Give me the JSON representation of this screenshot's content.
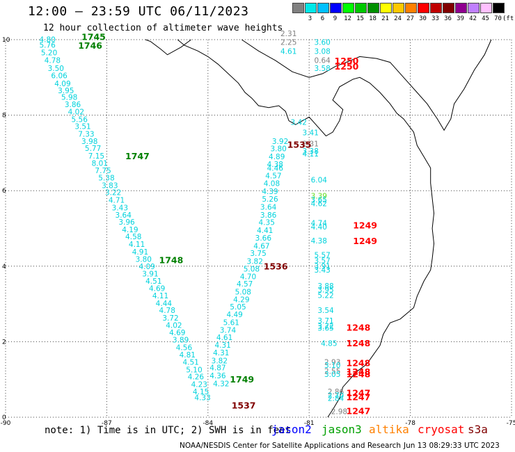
{
  "header": {
    "title": "12:00 – 23:59 UTC 06/11/2023",
    "subtitle": "12 hour collection of altimeter wave heights"
  },
  "colorbar": {
    "colors": [
      "#808080",
      "#00e8e8",
      "#00c0ff",
      "#0000ff",
      "#00ff00",
      "#00c800",
      "#009000",
      "#ffff00",
      "#ffc800",
      "#ff8000",
      "#ff0000",
      "#c00000",
      "#800000",
      "#900090",
      "#c080ff",
      "#ffc0ff",
      "#000000"
    ],
    "labels": [
      "3",
      "6",
      "9",
      "12",
      "15",
      "18",
      "21",
      "24",
      "27",
      "30",
      "33",
      "36",
      "39",
      "42",
      "45",
      "70"
    ],
    "unit": "(ft)"
  },
  "map": {
    "x_axis": {
      "ticks": [
        -90,
        -87,
        -84,
        -81,
        -78,
        -75
      ]
    },
    "y_axis": {
      "ticks": [
        0,
        2,
        4,
        6,
        8,
        10
      ]
    },
    "grid": "dotted",
    "swh_labels": [
      {
        "lon": -89.0,
        "lat": 9.94,
        "text": "4.80",
        "color": "cyan"
      },
      {
        "lon": -89.0,
        "lat": 9.79,
        "text": "5.76",
        "color": "cyan"
      },
      {
        "lon": -88.95,
        "lat": 9.59,
        "text": "5.20",
        "color": "cyan"
      },
      {
        "lon": -88.85,
        "lat": 9.38,
        "text": "4.78",
        "color": "cyan"
      },
      {
        "lon": -88.75,
        "lat": 9.17,
        "text": "3.50",
        "color": "cyan"
      },
      {
        "lon": -88.65,
        "lat": 8.98,
        "text": "6.06",
        "color": "cyan"
      },
      {
        "lon": -88.55,
        "lat": 8.77,
        "text": "4.09",
        "color": "cyan"
      },
      {
        "lon": -88.45,
        "lat": 8.58,
        "text": "3.95",
        "color": "cyan"
      },
      {
        "lon": -88.35,
        "lat": 8.41,
        "text": "5.98",
        "color": "cyan"
      },
      {
        "lon": -88.25,
        "lat": 8.21,
        "text": "3.86",
        "color": "cyan"
      },
      {
        "lon": -88.15,
        "lat": 8.02,
        "text": "4.02",
        "color": "cyan"
      },
      {
        "lon": -88.05,
        "lat": 7.82,
        "text": "5.56",
        "color": "cyan"
      },
      {
        "lon": -87.95,
        "lat": 7.63,
        "text": "3.51",
        "color": "cyan"
      },
      {
        "lon": -87.85,
        "lat": 7.43,
        "text": "7.33",
        "color": "cyan"
      },
      {
        "lon": -87.75,
        "lat": 7.24,
        "text": "3.98",
        "color": "cyan"
      },
      {
        "lon": -87.65,
        "lat": 7.05,
        "text": "5.77",
        "color": "cyan"
      },
      {
        "lon": -87.55,
        "lat": 6.85,
        "text": "7.15",
        "color": "cyan"
      },
      {
        "lon": -87.45,
        "lat": 6.66,
        "text": "8.01",
        "color": "cyan"
      },
      {
        "lon": -87.35,
        "lat": 6.46,
        "text": "7.75",
        "color": "cyan"
      },
      {
        "lon": -87.25,
        "lat": 6.27,
        "text": "5.38",
        "color": "cyan"
      },
      {
        "lon": -87.15,
        "lat": 6.07,
        "text": "3.83",
        "color": "cyan"
      },
      {
        "lon": -87.05,
        "lat": 5.88,
        "text": "3.22",
        "color": "cyan"
      },
      {
        "lon": -86.95,
        "lat": 5.68,
        "text": "4.71",
        "color": "cyan"
      },
      {
        "lon": -86.85,
        "lat": 5.48,
        "text": "3.43",
        "color": "cyan"
      },
      {
        "lon": -86.75,
        "lat": 5.29,
        "text": "3.64",
        "color": "cyan"
      },
      {
        "lon": -86.65,
        "lat": 5.1,
        "text": "3.96",
        "color": "cyan"
      },
      {
        "lon": -86.55,
        "lat": 4.9,
        "text": "4.19",
        "color": "cyan"
      },
      {
        "lon": -86.45,
        "lat": 4.71,
        "text": "4.58",
        "color": "cyan"
      },
      {
        "lon": -86.35,
        "lat": 4.51,
        "text": "4.11",
        "color": "cyan"
      },
      {
        "lon": -86.25,
        "lat": 4.31,
        "text": "4.91",
        "color": "cyan"
      },
      {
        "lon": -86.15,
        "lat": 4.12,
        "text": "3.80",
        "color": "cyan"
      },
      {
        "lon": -86.05,
        "lat": 3.92,
        "text": "4.09",
        "color": "cyan"
      },
      {
        "lon": -85.95,
        "lat": 3.73,
        "text": "3.91",
        "color": "cyan"
      },
      {
        "lon": -85.85,
        "lat": 3.54,
        "text": "4.51",
        "color": "cyan"
      },
      {
        "lon": -85.75,
        "lat": 3.34,
        "text": "4.69",
        "color": "cyan"
      },
      {
        "lon": -85.65,
        "lat": 3.15,
        "text": "4.11",
        "color": "cyan"
      },
      {
        "lon": -85.55,
        "lat": 2.95,
        "text": "4.44",
        "color": "cyan"
      },
      {
        "lon": -85.45,
        "lat": 2.76,
        "text": "4.78",
        "color": "cyan"
      },
      {
        "lon": -85.35,
        "lat": 2.56,
        "text": "3.72",
        "color": "cyan"
      },
      {
        "lon": -85.25,
        "lat": 2.37,
        "text": "4.02",
        "color": "cyan"
      },
      {
        "lon": -85.15,
        "lat": 2.17,
        "text": "4.69",
        "color": "cyan"
      },
      {
        "lon": -85.05,
        "lat": 1.98,
        "text": "3.89",
        "color": "cyan"
      },
      {
        "lon": -84.95,
        "lat": 1.78,
        "text": "4.56",
        "color": "cyan"
      },
      {
        "lon": -84.85,
        "lat": 1.58,
        "text": "4.81",
        "color": "cyan"
      },
      {
        "lon": -84.75,
        "lat": 1.39,
        "text": "4.51",
        "color": "cyan"
      },
      {
        "lon": -84.65,
        "lat": 1.19,
        "text": "5.10",
        "color": "cyan"
      },
      {
        "lon": -84.6,
        "lat": 1.0,
        "text": "4.26",
        "color": "cyan"
      },
      {
        "lon": -84.5,
        "lat": 0.8,
        "text": "4.23",
        "color": "cyan"
      },
      {
        "lon": -84.45,
        "lat": 0.61,
        "text": "4.15",
        "color": "cyan"
      },
      {
        "lon": -84.4,
        "lat": 0.45,
        "text": "4.33",
        "color": "cyan"
      },
      {
        "lon": -83.95,
        "lat": 1.03,
        "text": "4.36",
        "color": "cyan"
      },
      {
        "lon": -83.85,
        "lat": 0.82,
        "text": "4.32",
        "color": "cyan"
      },
      {
        "lon": -83.95,
        "lat": 1.24,
        "text": "4.87",
        "color": "cyan"
      },
      {
        "lon": -83.9,
        "lat": 1.43,
        "text": "3.82",
        "color": "cyan"
      },
      {
        "lon": -83.85,
        "lat": 1.64,
        "text": "4.31",
        "color": "cyan"
      },
      {
        "lon": -83.8,
        "lat": 1.84,
        "text": "4.31",
        "color": "cyan"
      },
      {
        "lon": -83.75,
        "lat": 2.04,
        "text": "4.61",
        "color": "cyan"
      },
      {
        "lon": -83.65,
        "lat": 2.24,
        "text": "3.74",
        "color": "cyan"
      },
      {
        "lon": -83.55,
        "lat": 2.44,
        "text": "5.61",
        "color": "cyan"
      },
      {
        "lon": -83.45,
        "lat": 2.65,
        "text": "4.49",
        "color": "cyan"
      },
      {
        "lon": -83.35,
        "lat": 2.85,
        "text": "5.05",
        "color": "cyan"
      },
      {
        "lon": -83.25,
        "lat": 3.05,
        "text": "4.29",
        "color": "cyan"
      },
      {
        "lon": -83.2,
        "lat": 3.25,
        "text": "5.08",
        "color": "cyan"
      },
      {
        "lon": -83.15,
        "lat": 3.46,
        "text": "4.57",
        "color": "cyan"
      },
      {
        "lon": -83.05,
        "lat": 3.66,
        "text": "4.70",
        "color": "cyan"
      },
      {
        "lon": -82.95,
        "lat": 3.86,
        "text": "5.08",
        "color": "cyan"
      },
      {
        "lon": -82.85,
        "lat": 4.06,
        "text": "3.82",
        "color": "cyan"
      },
      {
        "lon": -82.75,
        "lat": 4.27,
        "text": "3.75",
        "color": "cyan"
      },
      {
        "lon": -82.65,
        "lat": 4.47,
        "text": "4.67",
        "color": "cyan"
      },
      {
        "lon": -82.6,
        "lat": 4.68,
        "text": "3.66",
        "color": "cyan"
      },
      {
        "lon": -82.55,
        "lat": 4.88,
        "text": "4.41",
        "color": "cyan"
      },
      {
        "lon": -82.5,
        "lat": 5.09,
        "text": "4.35",
        "color": "cyan"
      },
      {
        "lon": -82.45,
        "lat": 5.29,
        "text": "3.86",
        "color": "cyan"
      },
      {
        "lon": -82.45,
        "lat": 5.5,
        "text": "3.64",
        "color": "cyan"
      },
      {
        "lon": -82.4,
        "lat": 5.71,
        "text": "5.26",
        "color": "cyan"
      },
      {
        "lon": -82.4,
        "lat": 5.91,
        "text": "4.39",
        "color": "cyan"
      },
      {
        "lon": -82.35,
        "lat": 6.12,
        "text": "4.08",
        "color": "cyan"
      },
      {
        "lon": -82.3,
        "lat": 6.33,
        "text": "4.57",
        "color": "cyan"
      },
      {
        "lon": -82.25,
        "lat": 6.53,
        "text": "4.46",
        "color": "cyan"
      },
      {
        "lon": -82.25,
        "lat": 6.63,
        "text": "4.38",
        "color": "cyan"
      },
      {
        "lon": -82.2,
        "lat": 6.83,
        "text": "4.89",
        "color": "cyan"
      },
      {
        "lon": -82.15,
        "lat": 7.04,
        "text": "3.80",
        "color": "cyan"
      },
      {
        "lon": -82.1,
        "lat": 7.24,
        "text": "3.92",
        "color": "cyan"
      },
      {
        "lon": -81.55,
        "lat": 7.74,
        "text": "3.42",
        "color": "cyan"
      },
      {
        "lon": -81.2,
        "lat": 7.47,
        "text": "3.41",
        "color": "cyan"
      },
      {
        "lon": -81.2,
        "lat": 7.17,
        "text": "2.31",
        "color": "gray"
      },
      {
        "lon": -81.2,
        "lat": 6.98,
        "text": "3.38",
        "color": "cyan"
      },
      {
        "lon": -81.2,
        "lat": 6.91,
        "text": "4.11",
        "color": "cyan"
      },
      {
        "lon": -80.95,
        "lat": 6.22,
        "text": "6.04",
        "color": "cyan"
      },
      {
        "lon": -80.95,
        "lat": 5.79,
        "text": "3.39",
        "color": "lime"
      },
      {
        "lon": -80.95,
        "lat": 5.69,
        "text": "3.65",
        "color": "cyan"
      },
      {
        "lon": -80.95,
        "lat": 5.59,
        "text": "4.62",
        "color": "cyan"
      },
      {
        "lon": -80.95,
        "lat": 5.07,
        "text": "4.74",
        "color": "cyan"
      },
      {
        "lon": -80.95,
        "lat": 4.97,
        "text": "4.40",
        "color": "cyan"
      },
      {
        "lon": -80.95,
        "lat": 4.6,
        "text": "4.38",
        "color": "cyan"
      },
      {
        "lon": -80.85,
        "lat": 4.23,
        "text": "5.57",
        "color": "cyan"
      },
      {
        "lon": -80.85,
        "lat": 4.08,
        "text": "3.57",
        "color": "cyan"
      },
      {
        "lon": -80.85,
        "lat": 3.93,
        "text": "3.91",
        "color": "cyan"
      },
      {
        "lon": -80.85,
        "lat": 3.83,
        "text": "3.43",
        "color": "cyan"
      },
      {
        "lon": -80.75,
        "lat": 3.41,
        "text": "3.88",
        "color": "cyan"
      },
      {
        "lon": -80.75,
        "lat": 3.31,
        "text": "3.95",
        "color": "cyan"
      },
      {
        "lon": -80.75,
        "lat": 3.16,
        "text": "5.22",
        "color": "cyan"
      },
      {
        "lon": -80.75,
        "lat": 2.76,
        "text": "3.54",
        "color": "cyan"
      },
      {
        "lon": -80.75,
        "lat": 2.49,
        "text": "3.71",
        "color": "cyan"
      },
      {
        "lon": -80.75,
        "lat": 2.34,
        "text": "3.72",
        "color": "cyan"
      },
      {
        "lon": -80.75,
        "lat": 2.29,
        "text": "3.65",
        "color": "cyan"
      },
      {
        "lon": -80.65,
        "lat": 1.89,
        "text": "4.85",
        "color": "cyan"
      },
      {
        "lon": -80.55,
        "lat": 1.39,
        "text": "2.93",
        "color": "gray"
      },
      {
        "lon": -80.55,
        "lat": 1.31,
        "text": "3.10",
        "color": "cyan"
      },
      {
        "lon": -80.55,
        "lat": 1.15,
        "text": "2.55",
        "color": "gray"
      },
      {
        "lon": -80.55,
        "lat": 1.07,
        "text": "3.05",
        "color": "cyan"
      },
      {
        "lon": -80.45,
        "lat": 0.61,
        "text": "2.86",
        "color": "gray"
      },
      {
        "lon": -80.45,
        "lat": 0.51,
        "text": "2.70",
        "color": "cyan"
      },
      {
        "lon": -80.45,
        "lat": 0.43,
        "text": "2.84",
        "color": "cyan"
      },
      {
        "lon": -80.35,
        "lat": 0.08,
        "text": "2.98",
        "color": "gray"
      },
      {
        "lon": -81.85,
        "lat": 10.09,
        "text": "2.31",
        "color": "gray"
      },
      {
        "lon": -81.85,
        "lat": 9.86,
        "text": "2.25",
        "color": "gray"
      },
      {
        "lon": -81.85,
        "lat": 9.62,
        "text": "4.61",
        "color": "cyan"
      },
      {
        "lon": -80.85,
        "lat": 9.86,
        "text": "3.60",
        "color": "cyan"
      },
      {
        "lon": -80.85,
        "lat": 9.62,
        "text": "3.08",
        "color": "cyan"
      },
      {
        "lon": -80.85,
        "lat": 9.38,
        "text": "0.64",
        "color": "gray"
      },
      {
        "lon": -80.85,
        "lat": 9.17,
        "text": "3.58",
        "color": "cyan"
      }
    ],
    "time_labels": [
      {
        "lon": -87.75,
        "lat": 9.99,
        "text": "1745",
        "color": "darkgreen"
      },
      {
        "lon": -87.85,
        "lat": 9.76,
        "text": "1746",
        "color": "darkgreen"
      },
      {
        "lon": -86.45,
        "lat": 6.83,
        "text": "1747",
        "color": "darkgreen"
      },
      {
        "lon": -85.45,
        "lat": 4.08,
        "text": "1748",
        "color": "darkgreen"
      },
      {
        "lon": -83.35,
        "lat": 0.92,
        "text": "1749",
        "color": "darkgreen"
      },
      {
        "lon": -81.65,
        "lat": 7.14,
        "text": "1535",
        "color": "maroon"
      },
      {
        "lon": -82.35,
        "lat": 3.91,
        "text": "1536",
        "color": "maroon"
      },
      {
        "lon": -83.3,
        "lat": 0.23,
        "text": "1537",
        "color": "maroon"
      },
      {
        "lon": -80.25,
        "lat": 9.36,
        "text": "1250",
        "color": "red"
      },
      {
        "lon": -80.25,
        "lat": 9.21,
        "text": "1250",
        "color": "red"
      },
      {
        "lon": -79.7,
        "lat": 5.0,
        "text": "1249",
        "color": "red"
      },
      {
        "lon": -79.7,
        "lat": 4.59,
        "text": "1249",
        "color": "red"
      },
      {
        "lon": -79.9,
        "lat": 2.29,
        "text": "1248",
        "color": "red"
      },
      {
        "lon": -79.9,
        "lat": 1.88,
        "text": "1248",
        "color": "red"
      },
      {
        "lon": -79.9,
        "lat": 1.35,
        "text": "1248",
        "color": "red"
      },
      {
        "lon": -79.9,
        "lat": 1.12,
        "text": "1248",
        "color": "red"
      },
      {
        "lon": -79.9,
        "lat": 1.06,
        "text": "1248",
        "color": "red"
      },
      {
        "lon": -79.9,
        "lat": 0.56,
        "text": "1247",
        "color": "red"
      },
      {
        "lon": -79.9,
        "lat": 0.45,
        "text": "1247",
        "color": "red"
      },
      {
        "lon": -79.9,
        "lat": 0.08,
        "text": "1247",
        "color": "red"
      }
    ],
    "colors": {
      "cyan": "#00d2dc",
      "gray": "#808080",
      "lime": "#66dd22",
      "darkgreen": "#008000",
      "maroon": "#800000",
      "red": "#ff0000",
      "coast": "#000000",
      "grid": "#444444"
    }
  },
  "note": "note: 1) Time is in UTC; 2) SWH is in feet",
  "legend": [
    {
      "name": "jason2",
      "color": "#0000ff"
    },
    {
      "name": "jason3",
      "color": "#00a000"
    },
    {
      "name": "altika",
      "color": "#ff8000"
    },
    {
      "name": "cryosat",
      "color": "#ff0000"
    },
    {
      "name": "s3a",
      "color": "#800000"
    }
  ],
  "footer": {
    "credit": "NOAA/NESDIS Center for Satellite Applications and Research",
    "timestamp": "Jun 13 08:29:33 UTC 2023"
  }
}
